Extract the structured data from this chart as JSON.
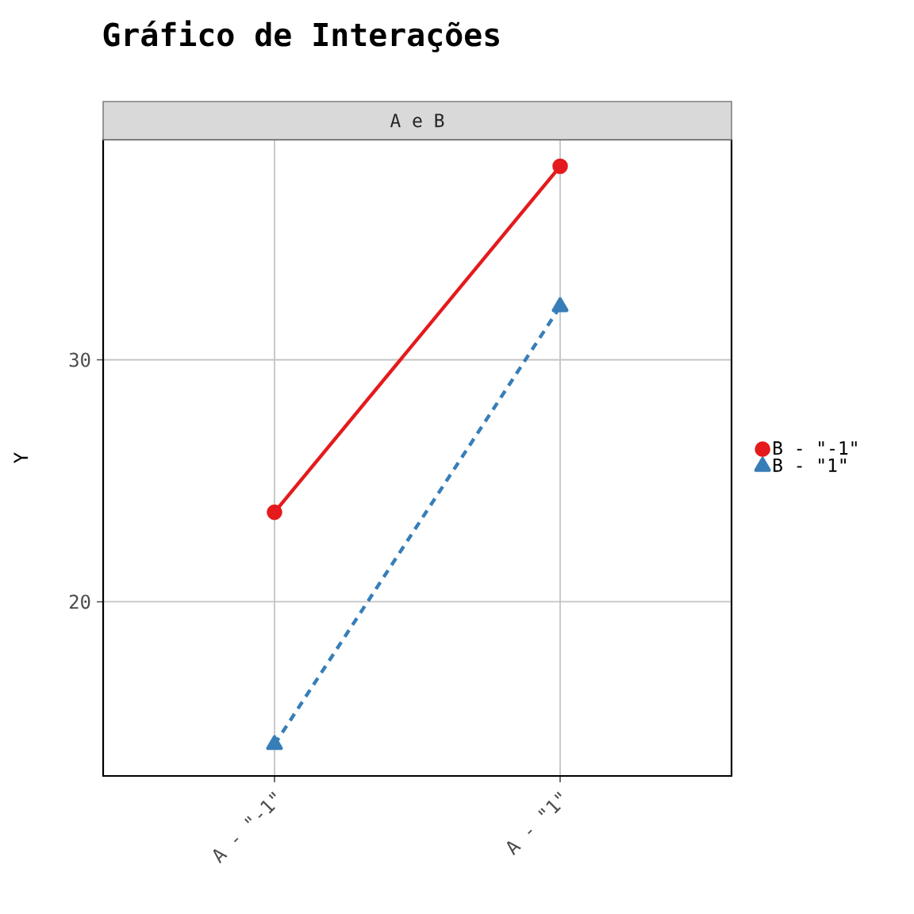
{
  "chart_data": {
    "type": "line",
    "title": "Gráfico de Interações",
    "annotations": [
      "A e B"
    ],
    "ylabel": "Y",
    "categories": [
      "A - \"-1\"",
      "A - \"1\""
    ],
    "series": [
      {
        "name": "B - \"-1\"",
        "color": "#e41a1c",
        "values": [
          23.7,
          38.0
        ],
        "marker": "circle",
        "line_style": "solid"
      },
      {
        "name": "B - \"1\"",
        "color": "#377eb8",
        "values": [
          14.1,
          32.2
        ],
        "marker": "triangle",
        "line_style": "dashed"
      }
    ],
    "ylim": [
      12.8,
      39.1
    ],
    "yticks": [
      20,
      30
    ],
    "grid": true,
    "legend": "right"
  }
}
